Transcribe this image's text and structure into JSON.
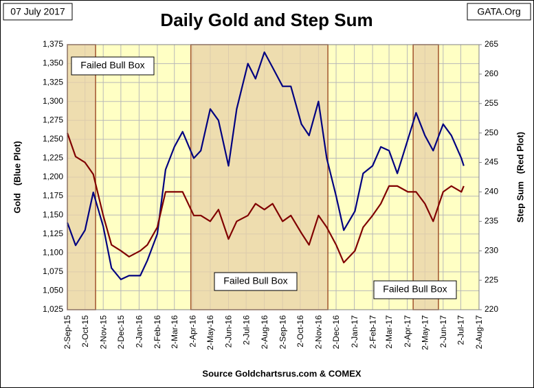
{
  "chart_data": {
    "type": "line",
    "title": "Daily Gold and Step Sum",
    "date_label": "07 July 2017",
    "source_label": "GATA.Org",
    "footer": "Source Goldchartsrus.com & COMEX",
    "ylabel": "Gold   (Blue Plot)",
    "y2label": "Step Sum   (Red Plot)",
    "x": [
      "2015-09-02",
      "2015-09-16",
      "2015-10-02",
      "2015-10-16",
      "2015-11-02",
      "2015-11-16",
      "2015-12-02",
      "2015-12-16",
      "2016-01-04",
      "2016-01-16",
      "2016-02-02",
      "2016-02-16",
      "2016-03-02",
      "2016-03-16",
      "2016-04-04",
      "2016-04-16",
      "2016-05-02",
      "2016-05-16",
      "2016-06-02",
      "2016-06-16",
      "2016-07-05",
      "2016-07-18",
      "2016-08-02",
      "2016-08-16",
      "2016-09-02",
      "2016-09-16",
      "2016-10-04",
      "2016-10-17",
      "2016-11-02",
      "2016-11-16",
      "2016-12-02",
      "2016-12-15",
      "2017-01-03",
      "2017-01-17",
      "2017-02-02",
      "2017-02-16",
      "2017-03-02",
      "2017-03-16",
      "2017-04-03",
      "2017-04-17",
      "2017-05-02",
      "2017-05-16",
      "2017-06-02",
      "2017-06-16",
      "2017-07-03",
      "2017-07-07"
    ],
    "series": [
      {
        "name": "Gold",
        "color": "#000080",
        "axis": "y",
        "values": [
          1140,
          1110,
          1130,
          1180,
          1135,
          1080,
          1065,
          1070,
          1070,
          1090,
          1125,
          1210,
          1240,
          1260,
          1225,
          1235,
          1290,
          1275,
          1215,
          1290,
          1350,
          1330,
          1365,
          1345,
          1320,
          1320,
          1270,
          1255,
          1300,
          1225,
          1175,
          1130,
          1155,
          1205,
          1215,
          1240,
          1235,
          1205,
          1250,
          1285,
          1255,
          1235,
          1270,
          1255,
          1225,
          1215
        ]
      },
      {
        "name": "Step Sum",
        "color": "#800000",
        "axis": "y2",
        "values": [
          250,
          246,
          245,
          243,
          236,
          231,
          230,
          229,
          230,
          231,
          234,
          240,
          240,
          240,
          236,
          236,
          235,
          237,
          232,
          235,
          236,
          238,
          237,
          238,
          235,
          236,
          233,
          231,
          236,
          234,
          231,
          228,
          230,
          234,
          236,
          238,
          241,
          241,
          240,
          240,
          238,
          235,
          240,
          241,
          240,
          241
        ]
      }
    ],
    "xlim": [
      "2015-09-02",
      "2017-08-02"
    ],
    "xticks": [
      {
        "value": "2015-09-02",
        "label": "2-Sep-15"
      },
      {
        "value": "2015-10-02",
        "label": "2-Oct-15"
      },
      {
        "value": "2015-11-02",
        "label": "2-Nov-15"
      },
      {
        "value": "2015-12-02",
        "label": "2-Dec-15"
      },
      {
        "value": "2016-01-02",
        "label": "2-Jan-16"
      },
      {
        "value": "2016-02-02",
        "label": "2-Feb-16"
      },
      {
        "value": "2016-03-02",
        "label": "2-Mar-16"
      },
      {
        "value": "2016-04-02",
        "label": "2-Apr-16"
      },
      {
        "value": "2016-05-02",
        "label": "2-May-16"
      },
      {
        "value": "2016-06-02",
        "label": "2-Jun-16"
      },
      {
        "value": "2016-07-02",
        "label": "2-Jul-16"
      },
      {
        "value": "2016-08-02",
        "label": "2-Aug-16"
      },
      {
        "value": "2016-09-02",
        "label": "2-Sep-16"
      },
      {
        "value": "2016-10-02",
        "label": "2-Oct-16"
      },
      {
        "value": "2016-11-02",
        "label": "2-Nov-16"
      },
      {
        "value": "2016-12-02",
        "label": "2-Dec-16"
      },
      {
        "value": "2017-01-02",
        "label": "2-Jan-17"
      },
      {
        "value": "2017-02-02",
        "label": "2-Feb-17"
      },
      {
        "value": "2017-03-02",
        "label": "2-Mar-17"
      },
      {
        "value": "2017-04-02",
        "label": "2-Apr-17"
      },
      {
        "value": "2017-05-02",
        "label": "2-May-17"
      },
      {
        "value": "2017-06-02",
        "label": "2-Jun-17"
      },
      {
        "value": "2017-07-02",
        "label": "2-Jul-17"
      },
      {
        "value": "2017-08-02",
        "label": "2-Aug-17"
      }
    ],
    "ylim": [
      1025,
      1375
    ],
    "yticks": [
      {
        "value": 1025,
        "label": "1,025"
      },
      {
        "value": 1050,
        "label": "1,050"
      },
      {
        "value": 1075,
        "label": "1,075"
      },
      {
        "value": 1100,
        "label": "1,100"
      },
      {
        "value": 1125,
        "label": "1,125"
      },
      {
        "value": 1150,
        "label": "1,150"
      },
      {
        "value": 1175,
        "label": "1,175"
      },
      {
        "value": 1200,
        "label": "1,200"
      },
      {
        "value": 1225,
        "label": "1,225"
      },
      {
        "value": 1250,
        "label": "1,250"
      },
      {
        "value": 1275,
        "label": "1,275"
      },
      {
        "value": 1300,
        "label": "1,300"
      },
      {
        "value": 1325,
        "label": "1,325"
      },
      {
        "value": 1350,
        "label": "1,350"
      },
      {
        "value": 1375,
        "label": "1,375"
      }
    ],
    "y2lim": [
      220,
      265
    ],
    "y2ticks": [
      220,
      225,
      230,
      235,
      240,
      245,
      250,
      255,
      260,
      265
    ],
    "grid": true,
    "annotations": [
      {
        "text": "Failed Bull Box",
        "start": "2015-09-02",
        "end": "2015-10-20"
      },
      {
        "text": "Failed Bull Box",
        "start": "2016-03-30",
        "end": "2016-11-18"
      },
      {
        "text": "Failed Bull Box",
        "start": "2017-04-12",
        "end": "2017-05-25"
      }
    ]
  }
}
